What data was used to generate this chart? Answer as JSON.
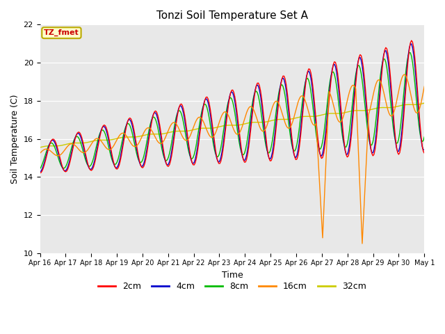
{
  "title": "Tonzi Soil Temperature Set A",
  "xlabel": "Time",
  "ylabel": "Soil Temperature (C)",
  "ylim": [
    10,
    22
  ],
  "yticks": [
    10,
    12,
    14,
    16,
    18,
    20,
    22
  ],
  "legend_labels": [
    "2cm",
    "4cm",
    "8cm",
    "16cm",
    "32cm"
  ],
  "legend_colors": [
    "#ff0000",
    "#0000cc",
    "#00bb00",
    "#ff8800",
    "#cccc00"
  ],
  "annotation_text": "TZ_fmet",
  "annotation_color": "#cc0000",
  "annotation_bg": "#ffffcc",
  "annotation_border": "#bbaa00",
  "bg_color": "#e8e8e8"
}
